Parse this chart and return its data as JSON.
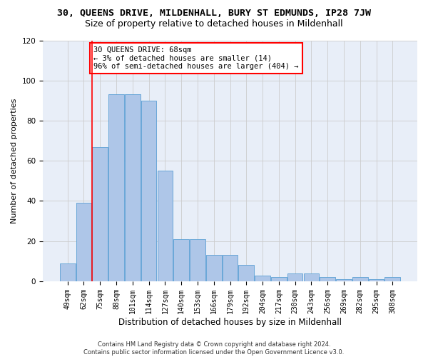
{
  "title_line1": "30, QUEENS DRIVE, MILDENHALL, BURY ST EDMUNDS, IP28 7JW",
  "title_line2": "Size of property relative to detached houses in Mildenhall",
  "xlabel": "Distribution of detached houses by size in Mildenhall",
  "ylabel": "Number of detached properties",
  "categories": [
    "49sqm",
    "62sqm",
    "75sqm",
    "88sqm",
    "101sqm",
    "114sqm",
    "127sqm",
    "140sqm",
    "153sqm",
    "166sqm",
    "179sqm",
    "192sqm",
    "204sqm",
    "217sqm",
    "230sqm",
    "243sqm",
    "256sqm",
    "269sqm",
    "282sqm",
    "295sqm",
    "308sqm"
  ],
  "values": [
    9,
    39,
    67,
    93,
    93,
    90,
    55,
    21,
    21,
    13,
    13,
    8,
    3,
    2,
    4,
    4,
    2,
    1,
    2,
    1,
    2
  ],
  "bar_color": "#aec6e8",
  "bar_edge_color": "#5a9fd4",
  "red_line_x": 1.5,
  "annotation_text": "30 QUEENS DRIVE: 68sqm\n← 3% of detached houses are smaller (14)\n96% of semi-detached houses are larger (404) →",
  "annotation_box_color": "white",
  "annotation_box_edge_color": "red",
  "red_line_color": "red",
  "ylim": [
    0,
    120
  ],
  "yticks": [
    0,
    20,
    40,
    60,
    80,
    100,
    120
  ],
  "grid_color": "#cccccc",
  "background_color": "#e8eef8",
  "footer_text": "Contains HM Land Registry data © Crown copyright and database right 2024.\nContains public sector information licensed under the Open Government Licence v3.0.",
  "title_fontsize": 9.5,
  "subtitle_fontsize": 9,
  "xlabel_fontsize": 8.5,
  "ylabel_fontsize": 8,
  "tick_fontsize": 7,
  "annotation_fontsize": 7.5,
  "footer_fontsize": 6
}
